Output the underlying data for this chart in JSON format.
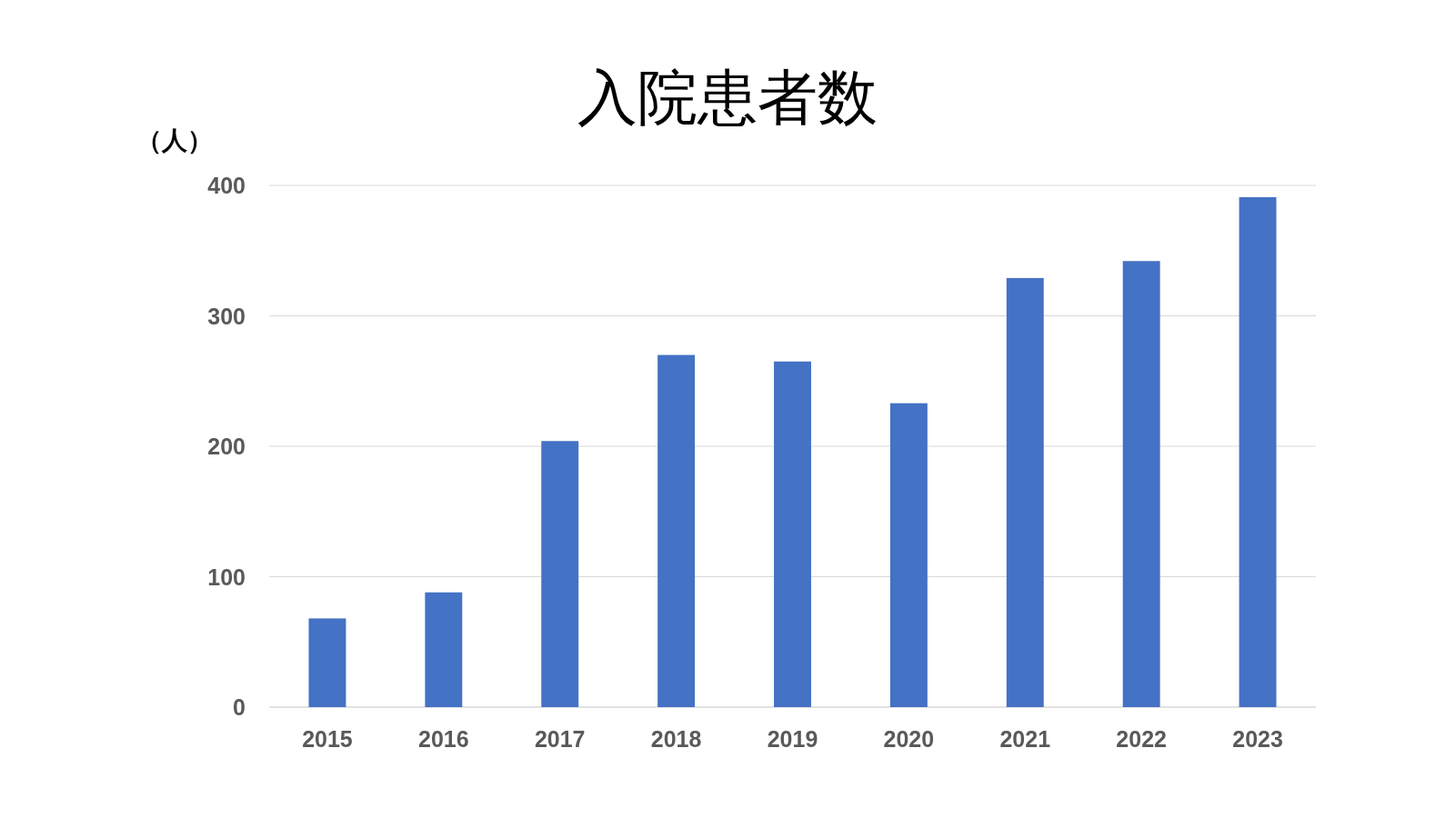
{
  "chart_data": {
    "type": "bar",
    "title": "入院患者数",
    "ylabel": "（人）",
    "categories": [
      "2015",
      "2016",
      "2017",
      "2018",
      "2019",
      "2020",
      "2021",
      "2022",
      "2023"
    ],
    "values": [
      68,
      88,
      204,
      270,
      265,
      233,
      329,
      342,
      391
    ],
    "color": "#4472c4",
    "ylim": [
      0,
      400
    ],
    "yticks": [
      0,
      100,
      200,
      300,
      400
    ],
    "grid": "y"
  }
}
